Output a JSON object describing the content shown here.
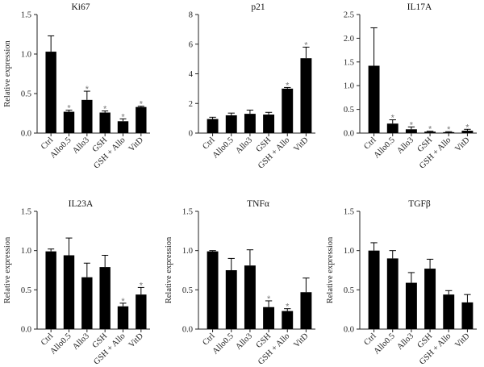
{
  "figure": {
    "panels_label": "Six bar chart panels"
  },
  "chart_data": [
    {
      "type": "bar",
      "title": "Ki67",
      "ylabel": "Relative expression",
      "categories": [
        "Ctrl",
        "Allo0.5",
        "Allo3",
        "GSH",
        "GSH + Allo",
        "VitD"
      ],
      "values": [
        1.03,
        0.27,
        0.42,
        0.26,
        0.15,
        0.33
      ],
      "errors": [
        0.2,
        0.02,
        0.11,
        0.02,
        0.03,
        0.01
      ],
      "significant": [
        false,
        true,
        true,
        true,
        true,
        true
      ],
      "marker": "*",
      "ylim": [
        0,
        1.5
      ],
      "yticks": [
        "0.0",
        "0.5",
        "1.0",
        "1.5"
      ],
      "ytick_values": [
        0,
        0.5,
        1.0,
        1.5
      ]
    },
    {
      "type": "bar",
      "title": "p21",
      "ylabel": "",
      "categories": [
        "Ctrl",
        "Allo0.5",
        "Allo3",
        "GSH",
        "GSH + Allo",
        "VitD"
      ],
      "values": [
        0.95,
        1.2,
        1.3,
        1.25,
        3.0,
        5.05
      ],
      "errors": [
        0.12,
        0.15,
        0.25,
        0.15,
        0.08,
        0.75
      ],
      "significant": [
        false,
        false,
        false,
        false,
        true,
        true
      ],
      "marker": "*",
      "ylim": [
        0,
        8
      ],
      "yticks": [
        "0",
        "2",
        "4",
        "6",
        "8"
      ],
      "ytick_values": [
        0,
        2,
        4,
        6,
        8
      ]
    },
    {
      "type": "bar",
      "title": "IL17A",
      "ylabel": "",
      "categories": [
        "Ctrl",
        "Allo0.5",
        "Allo3",
        "GSH",
        "GSH + Allo",
        "VitD"
      ],
      "values": [
        1.42,
        0.2,
        0.08,
        0.03,
        0.02,
        0.05
      ],
      "errors": [
        0.8,
        0.08,
        0.05,
        0.01,
        0.01,
        0.03
      ],
      "significant": [
        false,
        true,
        true,
        true,
        true,
        true
      ],
      "marker": "*",
      "ylim": [
        0,
        2.5
      ],
      "yticks": [
        "0.0",
        "0.5",
        "1.0",
        "1.5",
        "2.0",
        "2.5"
      ],
      "ytick_values": [
        0,
        0.5,
        1.0,
        1.5,
        2.0,
        2.5
      ]
    },
    {
      "type": "bar",
      "title": "IL23A",
      "ylabel": "Relative expression",
      "categories": [
        "Ctrl",
        "Allo0.5",
        "Allo3",
        "GSH",
        "GSH + Allo",
        "VitD"
      ],
      "values": [
        0.99,
        0.94,
        0.66,
        0.79,
        0.29,
        0.44
      ],
      "errors": [
        0.03,
        0.22,
        0.18,
        0.15,
        0.04,
        0.09
      ],
      "significant": [
        false,
        false,
        false,
        false,
        true,
        true
      ],
      "marker": "*",
      "ylim": [
        0,
        1.5
      ],
      "yticks": [
        "0.0",
        "0.5",
        "1.0",
        "1.5"
      ],
      "ytick_values": [
        0,
        0.5,
        1.0,
        1.5
      ]
    },
    {
      "type": "bar",
      "title": "TNFα",
      "ylabel": "Relative expression",
      "categories": [
        "Ctrl",
        "Allo0.5",
        "Allo3",
        "GSH",
        "GSH + Allo",
        "VitD"
      ],
      "values": [
        0.99,
        0.75,
        0.81,
        0.28,
        0.23,
        0.47
      ],
      "errors": [
        0.01,
        0.15,
        0.2,
        0.08,
        0.03,
        0.18
      ],
      "significant": [
        false,
        false,
        false,
        true,
        true,
        false
      ],
      "marker": "*",
      "ylim": [
        0,
        1.5
      ],
      "yticks": [
        "0.0",
        "0.5",
        "1.0",
        "1.5"
      ],
      "ytick_values": [
        0,
        0.5,
        1.0,
        1.5
      ]
    },
    {
      "type": "bar",
      "title": "TGFβ",
      "ylabel": "Relative expression",
      "categories": [
        "Ctrl",
        "Allo0.5",
        "Allo3",
        "GSH",
        "GSH + Allo",
        "VitD"
      ],
      "values": [
        1.0,
        0.9,
        0.59,
        0.77,
        0.44,
        0.34
      ],
      "errors": [
        0.1,
        0.1,
        0.13,
        0.12,
        0.05,
        0.1
      ],
      "significant": [
        false,
        false,
        false,
        false,
        false,
        false
      ],
      "marker": "*",
      "ylim": [
        0,
        1.5
      ],
      "yticks": [
        "0.0",
        "0.5",
        "1.0",
        "1.5"
      ],
      "ytick_values": [
        0,
        0.5,
        1.0,
        1.5
      ]
    }
  ]
}
